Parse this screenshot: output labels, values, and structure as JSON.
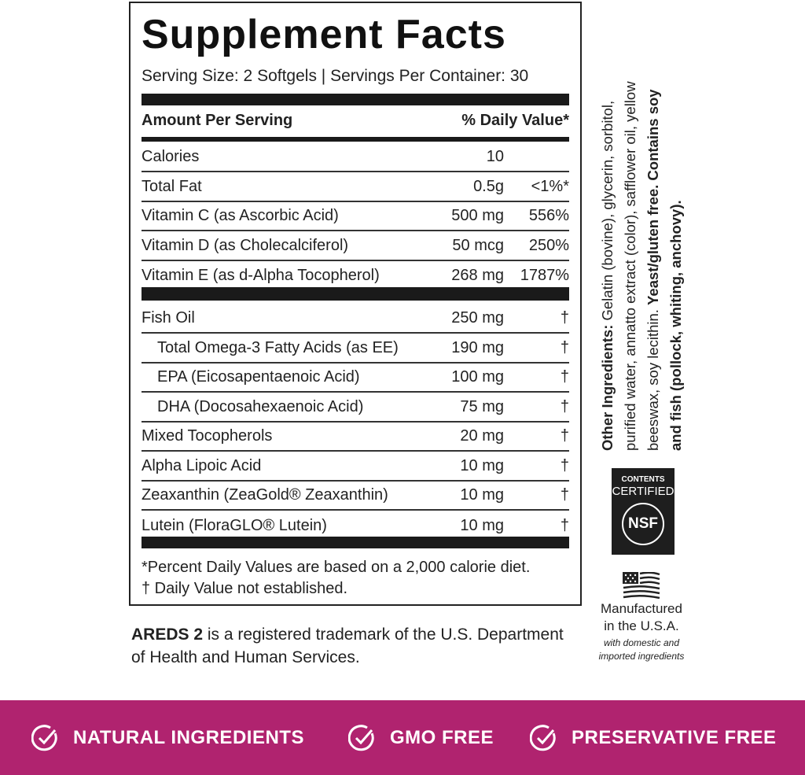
{
  "label": {
    "title": "Supplement Facts",
    "serving": "Serving Size: 2 Softgels | Servings Per Container: 30",
    "header_amount": "Amount Per Serving",
    "header_dv": "% Daily Value*",
    "rows_top": [
      {
        "name": "Calories",
        "amount": "10",
        "dv": ""
      },
      {
        "name": "Total Fat",
        "amount": "0.5g",
        "dv": "<1%*"
      },
      {
        "name": "Vitamin C (as Ascorbic Acid)",
        "amount": "500 mg",
        "dv": "556%"
      },
      {
        "name": "Vitamin D (as Cholecalciferol)",
        "amount": "50 mcg",
        "dv": "250%"
      },
      {
        "name": "Vitamin E (as d-Alpha Tocopherol)",
        "amount": "268 mg",
        "dv": "1787%"
      }
    ],
    "rows_bottom": [
      {
        "name": "Fish Oil",
        "amount": "250 mg",
        "dv": "†"
      },
      {
        "name": "Total Omega-3 Fatty Acids (as EE)",
        "amount": "190 mg",
        "dv": "†"
      },
      {
        "name": "EPA (Eicosapentaenoic Acid)",
        "amount": "100 mg",
        "dv": "†"
      },
      {
        "name": "DHA (Docosahexaenoic Acid)",
        "amount": "75 mg",
        "dv": "†"
      },
      {
        "name": "Mixed Tocopherols",
        "amount": "20 mg",
        "dv": "†"
      },
      {
        "name": "Alpha Lipoic Acid",
        "amount": "10 mg",
        "dv": "†"
      },
      {
        "name": "Zeaxanthin (ZeaGold® Zeaxanthin)",
        "amount": "10 mg",
        "dv": "†"
      },
      {
        "name": "Lutein (FloraGLO® Lutein)",
        "amount": "10 mg",
        "dv": "†"
      }
    ],
    "footnote_1": "*Percent Daily Values are based on a 2,000 calorie diet.",
    "footnote_2": "† Daily Value not established."
  },
  "trademark": {
    "bold": "AREDS 2",
    "line1": " is a registered trademark of the U.S. Department",
    "line2": "of Health and Human Services."
  },
  "ingredients": {
    "heading": "Other Ingredients:",
    "line1": " Gelatin (bovine), glycerin, sorbitol,",
    "line2": "purified water, annatto extract (color), safflower oil, yellow",
    "line3_regular": "beeswax, soy lecithin. ",
    "line3_bold": "Yeast/gluten free. Contains soy",
    "line4_bold": "and fish (pollock, whiting, anchovy)."
  },
  "nsf": {
    "line1": "CONTENTS",
    "line2": "CERTIFIED",
    "logo": "NSF"
  },
  "made_in": {
    "line1": "Manufactured",
    "line2": "in the U.S.A.",
    "line3": "with domestic and",
    "line4": "imported ingredients"
  },
  "banner": {
    "color": "#b0236f",
    "items": [
      {
        "icon": "check-circle-icon",
        "label": "NATURAL INGREDIENTS"
      },
      {
        "icon": "check-circle-icon",
        "label": "GMO FREE"
      },
      {
        "icon": "check-circle-icon",
        "label": "PRESERVATIVE FREE"
      }
    ]
  }
}
